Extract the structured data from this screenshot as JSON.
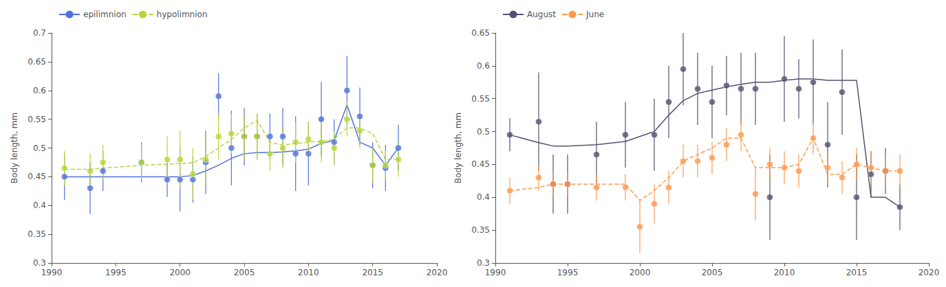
{
  "chart_data": [
    {
      "type": "scatter",
      "marker": "circle",
      "grid": false,
      "legend": "upper left",
      "ylabel": "Body length, mm",
      "xlim": [
        1990,
        2020
      ],
      "xticks": [
        1990,
        1995,
        2000,
        2005,
        2010,
        2015,
        2020
      ],
      "ylim": [
        0.3,
        0.7
      ],
      "yticks": [
        0.3,
        0.35,
        0.4,
        0.45,
        0.5,
        0.55,
        0.6,
        0.65,
        0.7
      ],
      "series": [
        {
          "name": "epilimnion",
          "line_style": "solid",
          "x": [
            1991,
            1993,
            1994,
            1997,
            1999,
            2000,
            2001,
            2002,
            2003,
            2004,
            2005,
            2006,
            2007,
            2008,
            2009,
            2010,
            2011,
            2012,
            2013,
            2014,
            2015,
            2016,
            2017
          ],
          "values": [
            0.45,
            0.43,
            0.46,
            0.475,
            0.445,
            0.445,
            0.445,
            0.475,
            0.59,
            0.5,
            0.52,
            0.52,
            0.52,
            0.52,
            0.49,
            0.49,
            0.55,
            0.51,
            0.6,
            0.555,
            0.47,
            0.465,
            0.5
          ],
          "errors": [
            0.04,
            0.045,
            0.035,
            0.035,
            0.03,
            0.055,
            0.04,
            0.055,
            0.04,
            0.065,
            0.05,
            0.04,
            0.04,
            0.05,
            0.065,
            0.055,
            0.065,
            0.04,
            0.06,
            0.05,
            0.04,
            0.04,
            0.04
          ],
          "line_x": [
            1991,
            1993,
            1994,
            1997,
            1999,
            2000,
            2001,
            2002,
            2003,
            2004,
            2005,
            2006,
            2007,
            2008,
            2009,
            2010,
            2011,
            2012,
            2013,
            2014,
            2015,
            2016,
            2017
          ],
          "line_y": [
            0.45,
            0.45,
            0.45,
            0.45,
            0.45,
            0.45,
            0.452,
            0.46,
            0.47,
            0.482,
            0.49,
            0.492,
            0.492,
            0.493,
            0.495,
            0.498,
            0.508,
            0.513,
            0.575,
            0.51,
            0.5,
            0.47,
            0.5
          ]
        },
        {
          "name": "hypolimnion",
          "line_style": "dashed",
          "x": [
            1991,
            1993,
            1994,
            1997,
            1999,
            2000,
            2001,
            2002,
            2003,
            2004,
            2005,
            2006,
            2007,
            2008,
            2009,
            2010,
            2011,
            2012,
            2013,
            2014,
            2015,
            2016,
            2017
          ],
          "values": [
            0.465,
            0.46,
            0.475,
            0.475,
            0.48,
            0.48,
            0.455,
            0.48,
            0.52,
            0.525,
            0.52,
            0.52,
            0.49,
            0.5,
            0.51,
            0.515,
            0.51,
            0.5,
            0.55,
            0.53,
            0.47,
            0.47,
            0.48
          ],
          "errors": [
            0.03,
            0.03,
            0.03,
            0.03,
            0.04,
            0.05,
            0.045,
            0.045,
            0.04,
            0.035,
            0.04,
            0.04,
            0.03,
            0.035,
            0.035,
            0.03,
            0.035,
            0.03,
            0.03,
            0.03,
            0.03,
            0.025,
            0.03
          ],
          "line_x": [
            1991,
            1993,
            1994,
            1997,
            1999,
            2000,
            2001,
            2002,
            2003,
            2004,
            2005,
            2006,
            2007,
            2008,
            2009,
            2010,
            2011,
            2012,
            2013,
            2014,
            2015,
            2016,
            2017
          ],
          "line_y": [
            0.463,
            0.463,
            0.465,
            0.47,
            0.472,
            0.473,
            0.474,
            0.485,
            0.5,
            0.515,
            0.535,
            0.548,
            0.51,
            0.505,
            0.508,
            0.51,
            0.512,
            0.515,
            0.535,
            0.535,
            0.525,
            0.48,
            0.48
          ]
        }
      ]
    },
    {
      "type": "scatter",
      "marker": "circle",
      "grid": false,
      "legend": "upper left",
      "ylabel": "Body length, mm",
      "xlim": [
        1990,
        2020
      ],
      "xticks": [
        1990,
        1995,
        2000,
        2005,
        2010,
        2015,
        2020
      ],
      "ylim": [
        0.3,
        0.65
      ],
      "yticks": [
        0.3,
        0.35,
        0.4,
        0.45,
        0.5,
        0.55,
        0.6,
        0.65
      ],
      "series": [
        {
          "name": "August",
          "line_style": "solid",
          "x": [
            1991,
            1993,
            1994,
            1995,
            1997,
            1999,
            2001,
            2002,
            2003,
            2004,
            2005,
            2006,
            2007,
            2008,
            2009,
            2010,
            2011,
            2012,
            2013,
            2014,
            2015,
            2016,
            2017,
            2018
          ],
          "values": [
            0.495,
            0.515,
            0.42,
            0.42,
            0.465,
            0.495,
            0.495,
            0.545,
            0.595,
            0.565,
            0.545,
            0.57,
            0.565,
            0.565,
            0.4,
            0.58,
            0.565,
            0.575,
            0.48,
            0.56,
            0.4,
            0.435,
            0.44,
            0.385
          ],
          "errors": [
            0.025,
            0.075,
            0.045,
            0.045,
            0.05,
            0.05,
            0.055,
            0.055,
            0.055,
            0.055,
            0.055,
            0.045,
            0.055,
            0.055,
            0.065,
            0.065,
            0.045,
            0.065,
            0.065,
            0.065,
            0.065,
            0.035,
            0.035,
            0.035
          ],
          "line_x": [
            1991,
            1993,
            1994,
            1995,
            1997,
            1999,
            2001,
            2002,
            2003,
            2004,
            2005,
            2006,
            2007,
            2008,
            2009,
            2010,
            2011,
            2012,
            2013,
            2014,
            2015,
            2016,
            2017,
            2018
          ],
          "line_y": [
            0.495,
            0.483,
            0.478,
            0.478,
            0.48,
            0.485,
            0.5,
            0.525,
            0.547,
            0.558,
            0.563,
            0.568,
            0.572,
            0.575,
            0.575,
            0.578,
            0.58,
            0.58,
            0.578,
            0.578,
            0.578,
            0.4,
            0.4,
            0.385
          ]
        },
        {
          "name": "June",
          "line_style": "dashed",
          "x": [
            1991,
            1993,
            1994,
            1995,
            1997,
            1999,
            2000,
            2001,
            2002,
            2003,
            2004,
            2005,
            2006,
            2007,
            2008,
            2009,
            2010,
            2011,
            2012,
            2013,
            2014,
            2015,
            2016,
            2017,
            2018
          ],
          "values": [
            0.41,
            0.43,
            0.42,
            0.42,
            0.415,
            0.415,
            0.355,
            0.39,
            0.415,
            0.455,
            0.455,
            0.46,
            0.48,
            0.495,
            0.405,
            0.45,
            0.445,
            0.44,
            0.49,
            0.445,
            0.43,
            0.45,
            0.445,
            0.44,
            0.44
          ],
          "errors": [
            0.02,
            0.02,
            0.02,
            0.02,
            0.02,
            0.02,
            0.04,
            0.03,
            0.025,
            0.025,
            0.025,
            0.025,
            0.025,
            0.025,
            0.04,
            0.025,
            0.025,
            0.025,
            0.025,
            0.025,
            0.025,
            0.025,
            0.025,
            0.025,
            0.025
          ],
          "line_x": [
            1991,
            1993,
            1994,
            1995,
            1997,
            1999,
            2000,
            2001,
            2002,
            2003,
            2004,
            2005,
            2006,
            2007,
            2008,
            2009,
            2010,
            2011,
            2012,
            2013,
            2014,
            2015,
            2016,
            2017,
            2018
          ],
          "line_y": [
            0.41,
            0.415,
            0.42,
            0.42,
            0.42,
            0.42,
            0.395,
            0.41,
            0.43,
            0.455,
            0.465,
            0.475,
            0.49,
            0.49,
            0.445,
            0.445,
            0.445,
            0.45,
            0.49,
            0.435,
            0.435,
            0.45,
            0.445,
            0.44,
            0.44
          ]
        }
      ]
    }
  ]
}
